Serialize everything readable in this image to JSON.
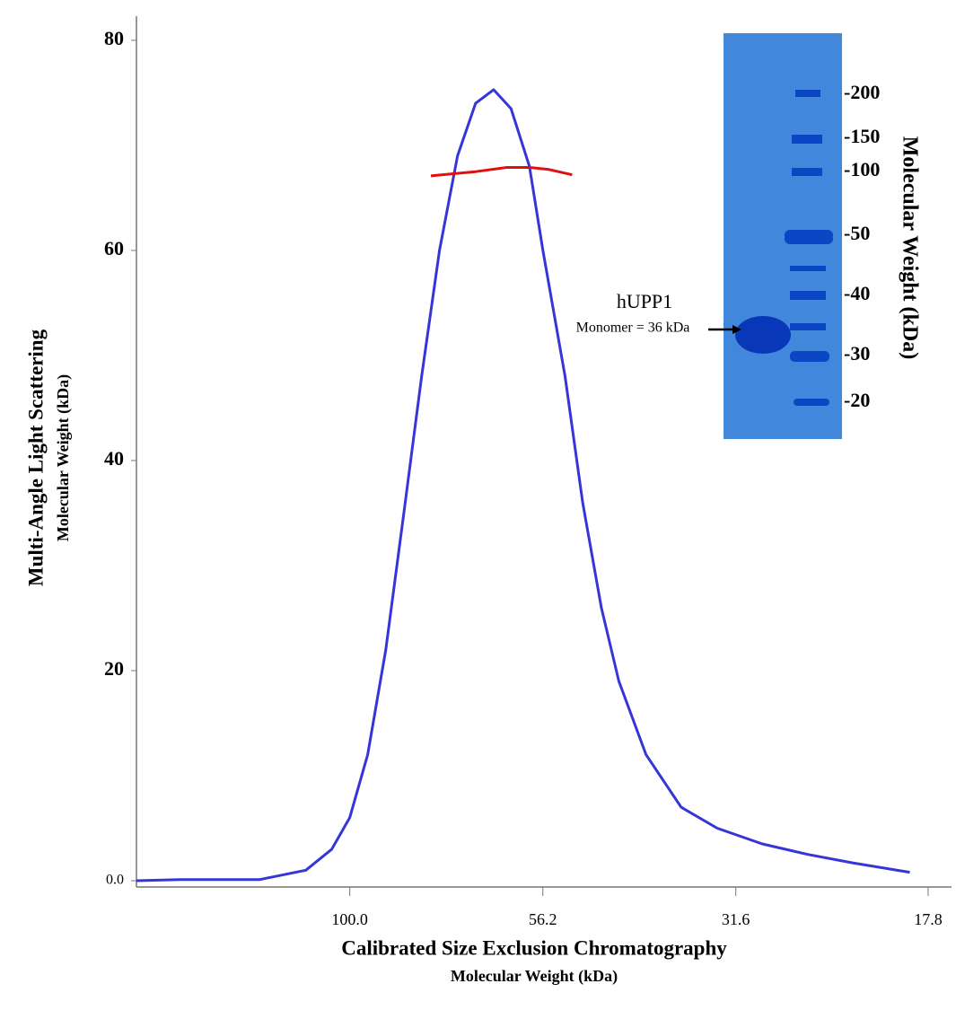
{
  "chart_data": {
    "type": "line",
    "ylabel": "Multi-Angle Light Scattering",
    "ylabel_sub": "Molecular Weight (kDa)",
    "xlabel": "Calibrated Size Exclusion Chromatography",
    "xlabel_sub": "Molecular Weight (kDa)",
    "xscale": "log",
    "xlim": [
      189,
      16.6
    ],
    "xticks": [
      {
        "value": 100,
        "label": "100.0"
      },
      56.2,
      31.6,
      17.8
    ],
    "ylim": [
      -0.6,
      82.3
    ],
    "yticks": [
      {
        "value": 0,
        "label": "0.0"
      },
      20,
      40,
      60,
      80
    ],
    "series": [
      {
        "color": "#3535d8",
        "x": [
          189,
          166,
          131,
          114,
          105.5,
          100,
          94.8,
          89.8,
          85.1,
          80.7,
          76.5,
          72.5,
          68.7,
          65.1,
          61.8,
          58.5,
          56.2,
          52.6,
          49.9,
          47.2,
          44.8,
          41.3,
          37.2,
          33.4,
          29.2,
          25.5,
          22.3,
          18.8
        ],
        "values": [
          0,
          0.1,
          0.1,
          1,
          3,
          6,
          12,
          22,
          35,
          48,
          60,
          69,
          74,
          75.3,
          73.5,
          68,
          60,
          48,
          36,
          26,
          19,
          12,
          7,
          5,
          3.5,
          2.5,
          1.7,
          0.8
        ]
      },
      {
        "color": "#e01010",
        "x": [
          78.5,
          68.7,
          62.6,
          58.5,
          55.2,
          51.5
        ],
        "values": [
          67.1,
          67.5,
          67.9,
          67.9,
          67.7,
          67.2
        ]
      }
    ],
    "inset": {
      "title": "Molecular Weight (kDa)",
      "markers": [
        "-200",
        "-150",
        "-100",
        "-50",
        "-40",
        "-30",
        "-20"
      ],
      "band_label": "hUPP1",
      "band_note": "Monomer = 36 kDa"
    }
  }
}
